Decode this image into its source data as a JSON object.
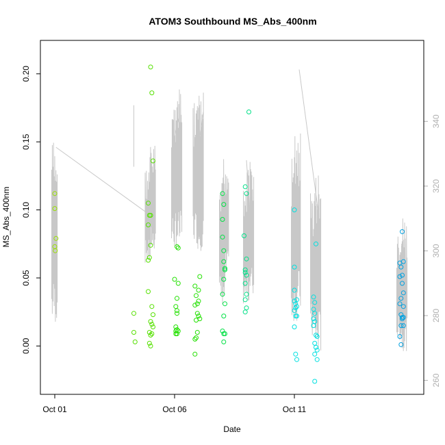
{
  "chart_data": {
    "type": "scatter",
    "title": "ATOM3 Southbound MS_Abs_400nm",
    "xlabel": "Date",
    "ylabel": "MS_Abs_400nm",
    "y2label": "",
    "x_ticks": [
      {
        "day": 1,
        "label": "Oct 01"
      },
      {
        "day": 6,
        "label": "Oct 06"
      },
      {
        "day": 11,
        "label": "Oct 11"
      }
    ],
    "xlim": [
      1,
      15.8
    ],
    "ylim": [
      -0.03,
      0.215
    ],
    "y_ticks": [
      0.0,
      0.05,
      0.1,
      0.15,
      0.2
    ],
    "y_tick_labels": [
      "0.00",
      "0.05",
      "0.10",
      "0.15",
      "0.20"
    ],
    "y2lim": [
      258,
      361
    ],
    "y2_ticks": [
      260,
      280,
      300,
      320,
      340
    ],
    "y2_tick_labels": [
      "260",
      "280",
      "300",
      "320",
      "340"
    ],
    "grid": false,
    "line_color": "#c8c8c8",
    "point_style": "open-circle",
    "series": [
      {
        "color": "#99e000",
        "points": [
          [
            1.0,
            0.112
          ],
          [
            1.0,
            0.101
          ],
          [
            1.05,
            0.079
          ],
          [
            1.0,
            0.073
          ],
          [
            1.02,
            0.07
          ]
        ]
      },
      {
        "color": "#55e000",
        "points": [
          [
            4.3,
            0.024
          ],
          [
            4.3,
            0.01
          ],
          [
            4.35,
            0.003
          ],
          [
            5.0,
            0.205
          ],
          [
            5.05,
            0.186
          ],
          [
            5.1,
            0.136
          ],
          [
            4.9,
            0.105
          ],
          [
            4.95,
            0.096
          ],
          [
            5.0,
            0.096
          ],
          [
            4.9,
            0.089
          ],
          [
            5.0,
            0.074
          ],
          [
            4.95,
            0.065
          ],
          [
            4.9,
            0.063
          ],
          [
            4.9,
            0.04
          ],
          [
            5.05,
            0.029
          ],
          [
            5.1,
            0.023
          ],
          [
            5.0,
            0.018
          ],
          [
            5.05,
            0.016
          ],
          [
            5.1,
            0.014
          ],
          [
            4.95,
            0.01
          ],
          [
            5.05,
            0.009
          ],
          [
            5.0,
            0.008
          ],
          [
            4.95,
            0.002
          ],
          [
            5.0,
            0.0
          ]
        ]
      },
      {
        "color": "#22e000",
        "points": [
          [
            6.1,
            0.073
          ],
          [
            6.15,
            0.072
          ],
          [
            6.0,
            0.049
          ],
          [
            6.15,
            0.046
          ],
          [
            6.1,
            0.035
          ],
          [
            6.05,
            0.029
          ],
          [
            6.1,
            0.026
          ],
          [
            6.1,
            0.024
          ],
          [
            6.05,
            0.014
          ],
          [
            6.1,
            0.012
          ],
          [
            6.05,
            0.011
          ],
          [
            6.15,
            0.011
          ],
          [
            6.1,
            0.009
          ],
          [
            6.05,
            0.009
          ],
          [
            6.85,
            0.044
          ],
          [
            7.0,
            0.041
          ],
          [
            6.9,
            0.037
          ],
          [
            7.0,
            0.033
          ],
          [
            6.95,
            0.031
          ],
          [
            6.85,
            0.03
          ],
          [
            7.05,
            0.051
          ],
          [
            6.95,
            0.024
          ],
          [
            7.0,
            0.022
          ],
          [
            6.9,
            0.019
          ],
          [
            7.05,
            0.02
          ],
          [
            6.95,
            0.01
          ],
          [
            6.9,
            0.006
          ],
          [
            6.85,
            0.005
          ],
          [
            6.85,
            -0.006
          ]
        ]
      },
      {
        "color": "#00e044",
        "points": [
          [
            8.0,
            0.112
          ],
          [
            8.05,
            0.104
          ],
          [
            8.0,
            0.093
          ],
          [
            8.0,
            0.08
          ],
          [
            8.05,
            0.07
          ],
          [
            8.05,
            0.062
          ],
          [
            8.1,
            0.057
          ],
          [
            8.1,
            0.056
          ],
          [
            8.05,
            0.049
          ],
          [
            8.0,
            0.038
          ],
          [
            8.1,
            0.031
          ],
          [
            8.05,
            0.022
          ],
          [
            8.0,
            0.011
          ],
          [
            8.05,
            0.009
          ],
          [
            8.1,
            0.009
          ],
          [
            8.05,
            0.003
          ]
        ]
      },
      {
        "color": "#00e088",
        "points": [
          [
            9.1,
            0.172
          ],
          [
            8.95,
            0.117
          ],
          [
            9.0,
            0.112
          ],
          [
            8.9,
            0.081
          ],
          [
            9.0,
            0.064
          ],
          [
            8.95,
            0.056
          ],
          [
            8.95,
            0.054
          ],
          [
            9.0,
            0.052
          ],
          [
            8.95,
            0.046
          ],
          [
            9.0,
            0.038
          ],
          [
            8.95,
            0.034
          ],
          [
            9.0,
            0.028
          ],
          [
            8.95,
            0.025
          ]
        ]
      },
      {
        "color": "#00e0e0",
        "points": [
          [
            11.0,
            0.1
          ],
          [
            11.0,
            0.058
          ],
          [
            11.0,
            0.041
          ],
          [
            11.1,
            0.034
          ],
          [
            11.0,
            0.033
          ],
          [
            11.05,
            0.031
          ],
          [
            11.1,
            0.029
          ],
          [
            11.05,
            0.028
          ],
          [
            11.0,
            0.026
          ],
          [
            11.05,
            0.022
          ],
          [
            11.1,
            0.022
          ],
          [
            11.0,
            0.014
          ],
          [
            11.05,
            -0.006
          ],
          [
            11.1,
            -0.01
          ],
          [
            11.9,
            0.075
          ],
          [
            11.8,
            0.036
          ],
          [
            11.85,
            0.032
          ],
          [
            11.8,
            0.027
          ],
          [
            11.85,
            0.024
          ],
          [
            11.8,
            0.02
          ],
          [
            11.85,
            0.018
          ],
          [
            11.8,
            0.015
          ],
          [
            11.9,
            0.008
          ],
          [
            11.95,
            0.007
          ],
          [
            11.85,
            0.002
          ],
          [
            11.9,
            -0.001
          ],
          [
            11.95,
            -0.003
          ],
          [
            11.85,
            -0.006
          ],
          [
            11.95,
            -0.01
          ],
          [
            11.85,
            -0.026
          ]
        ]
      },
      {
        "color": "#00a0e0",
        "points": [
          [
            15.5,
            0.084
          ],
          [
            15.4,
            0.061
          ],
          [
            15.55,
            0.062
          ],
          [
            15.45,
            0.058
          ],
          [
            15.5,
            0.052
          ],
          [
            15.4,
            0.051
          ],
          [
            15.5,
            0.046
          ],
          [
            15.55,
            0.039
          ],
          [
            15.45,
            0.035
          ],
          [
            15.4,
            0.031
          ],
          [
            15.55,
            0.029
          ],
          [
            15.45,
            0.023
          ],
          [
            15.5,
            0.021
          ],
          [
            15.55,
            0.021
          ],
          [
            15.5,
            0.02
          ],
          [
            15.45,
            0.015
          ],
          [
            15.55,
            0.015
          ],
          [
            15.4,
            0.007
          ],
          [
            15.45,
            0.001
          ]
        ]
      }
    ],
    "secondary_line": {
      "vertical_bursts": [
        {
          "x": 1.0,
          "low": 277,
          "high": 335
        },
        {
          "x": 4.9,
          "low": 296,
          "high": 326
        },
        {
          "x": 5.1,
          "low": 300,
          "high": 333
        },
        {
          "x": 6.0,
          "low": 300,
          "high": 348
        },
        {
          "x": 6.2,
          "low": 300,
          "high": 350
        },
        {
          "x": 6.9,
          "low": 302,
          "high": 346
        },
        {
          "x": 7.1,
          "low": 300,
          "high": 349
        },
        {
          "x": 8.0,
          "low": 283,
          "high": 322
        },
        {
          "x": 8.15,
          "low": 290,
          "high": 330
        },
        {
          "x": 9.0,
          "low": 283,
          "high": 325
        },
        {
          "x": 9.2,
          "low": 285,
          "high": 328
        },
        {
          "x": 11.0,
          "low": 278,
          "high": 330
        },
        {
          "x": 11.15,
          "low": 280,
          "high": 338
        },
        {
          "x": 11.8,
          "low": 272,
          "high": 320
        },
        {
          "x": 12.0,
          "low": 268,
          "high": 325
        },
        {
          "x": 15.4,
          "low": 272,
          "high": 305
        },
        {
          "x": 15.6,
          "low": 269,
          "high": 310
        }
      ],
      "connectors": [
        [
          1.05,
          332
        ],
        [
          4.8,
          312
        ],
        [
          4.3,
          326
        ],
        [
          4.3,
          345
        ],
        [
          6.0,
          335
        ],
        [
          6.2,
          342
        ],
        [
          7.0,
          332
        ],
        [
          7.2,
          343
        ],
        [
          9.0,
          328
        ],
        [
          9.2,
          306
        ],
        [
          12.0,
          312
        ],
        [
          11.2,
          356
        ],
        [
          15.4,
          299
        ]
      ]
    }
  }
}
